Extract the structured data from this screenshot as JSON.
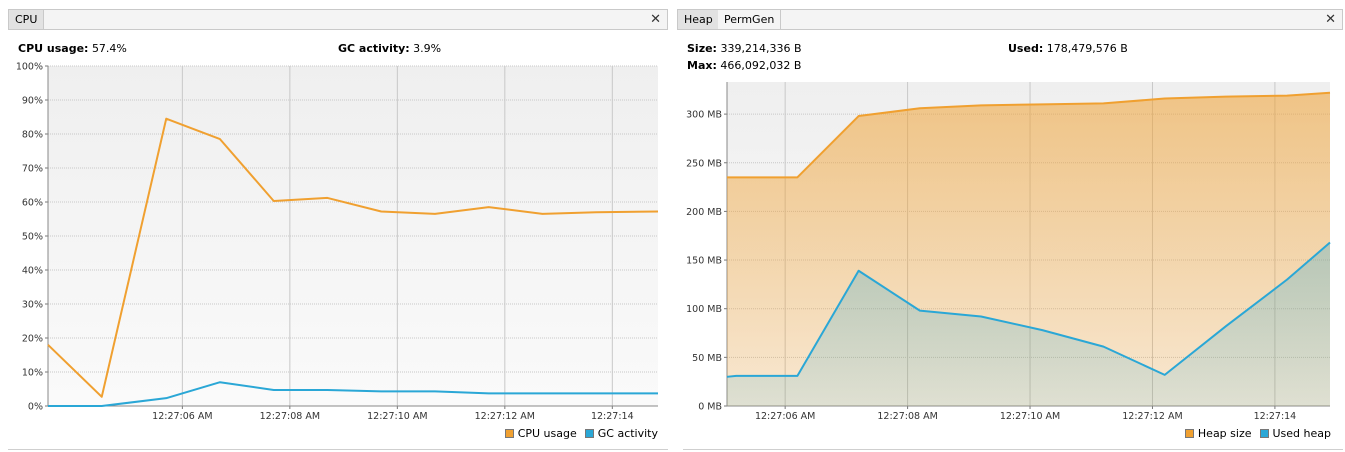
{
  "cpu": {
    "tab_label": "CPU",
    "close_glyph": "✕",
    "usage_label": "CPU usage:",
    "usage_value": "57.4%",
    "gc_label": "GC activity:",
    "gc_value": "3.9%",
    "legend": [
      "CPU usage",
      "GC activity"
    ]
  },
  "memory": {
    "tabs": [
      "Heap",
      "PermGen"
    ],
    "close_glyph": "✕",
    "size_label": "Size:",
    "size_value": "339,214,336 B",
    "used_label": "Used:",
    "used_value": "178,479,576 B",
    "max_label": "Max:",
    "max_value": "466,092,032 B",
    "legend": [
      "Heap size",
      "Used heap"
    ]
  },
  "colors": {
    "orange": "#f0a030",
    "blue": "#2aa7d6",
    "grid": "#c8c8c8",
    "plot_bg_top": "#efefef",
    "plot_bg_bottom": "#fafafa"
  },
  "chart_data": [
    {
      "type": "line",
      "title": "",
      "xlabel": "",
      "ylabel": "",
      "ylim": [
        0,
        100
      ],
      "xlim_seconds": [
        3.5,
        14.85
      ],
      "x_ticks": [
        "12:27:06 AM",
        "12:27:08 AM",
        "12:27:10 AM",
        "12:27:12 AM",
        "12:27:14"
      ],
      "x_tick_seconds": [
        6,
        8,
        10,
        12,
        14
      ],
      "y_ticks": [
        "0%",
        "10%",
        "20%",
        "30%",
        "40%",
        "50%",
        "60%",
        "70%",
        "80%",
        "90%",
        "100%"
      ],
      "grid": true,
      "legend_position": "bottom-right",
      "series": [
        {
          "name": "CPU usage",
          "x_seconds": [
            3.5,
            4.5,
            5.7,
            6.7,
            7.7,
            8.7,
            9.7,
            10.7,
            11.7,
            12.7,
            13.7,
            14.85
          ],
          "values": [
            18,
            2.7,
            84.5,
            78.5,
            60.3,
            61.2,
            57.2,
            56.5,
            58.5,
            56.5,
            57,
            57.2
          ]
        },
        {
          "name": "GC activity",
          "x_seconds": [
            3.5,
            4.5,
            5.7,
            6.7,
            7.7,
            8.7,
            9.7,
            10.7,
            11.7,
            12.7,
            13.7,
            14.85
          ],
          "values": [
            0,
            0,
            2.3,
            7,
            4.7,
            4.7,
            4.3,
            4.3,
            3.7,
            3.7,
            3.7,
            3.7
          ]
        }
      ]
    },
    {
      "type": "area",
      "title": "",
      "xlabel": "",
      "ylabel": "",
      "ylim": [
        0,
        333
      ],
      "xlim_seconds": [
        5.05,
        14.9
      ],
      "x_ticks": [
        "12:27:06 AM",
        "12:27:08 AM",
        "12:27:10 AM",
        "12:27:12 AM",
        "12:27:14"
      ],
      "x_tick_seconds": [
        6,
        8,
        10,
        12,
        14
      ],
      "y_ticks": [
        "0 MB",
        "50 MB",
        "100 MB",
        "150 MB",
        "200 MB",
        "250 MB",
        "300 MB"
      ],
      "y_tick_values": [
        0,
        50,
        100,
        150,
        200,
        250,
        300
      ],
      "grid": true,
      "legend_position": "bottom-right",
      "series": [
        {
          "name": "Heap size",
          "x_seconds": [
            5.05,
            6.2,
            7.2,
            8.2,
            9.2,
            10.2,
            11.2,
            12.2,
            13.2,
            14.2,
            14.9
          ],
          "values": [
            235,
            235,
            298,
            306,
            309,
            310,
            311,
            316,
            318,
            319,
            322
          ]
        },
        {
          "name": "Used heap",
          "x_seconds": [
            5.05,
            5.2,
            6.2,
            7.2,
            8.2,
            9.2,
            10.2,
            11.2,
            12.2,
            13.2,
            14.2,
            14.9
          ],
          "values": [
            30,
            31,
            31,
            139,
            98,
            92,
            78,
            61,
            32,
            82,
            130,
            168
          ]
        }
      ]
    }
  ]
}
